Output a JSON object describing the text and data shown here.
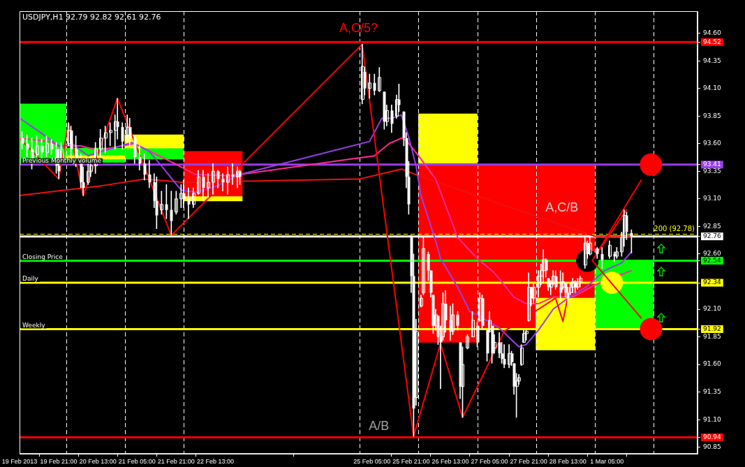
{
  "chart_data": {
    "type": "candlestick",
    "title": "USDJPY,H1 92.79 92.82 92.61 92.76",
    "color": "#ffffff",
    "x": [
      "2013-02-19T06:00",
      "2013-02-19T08:00",
      "2013-02-19T10:00",
      "2013-02-19T12:00",
      "2013-02-19T14:00",
      "2013-02-19T16:00",
      "2013-02-19T18:00",
      "2013-02-19T20:00",
      "2013-02-19T21:00",
      "2013-02-19T22:00",
      "2013-02-20T01:00",
      "2013-02-20T02:00",
      "2013-02-20T04:00",
      "2013-02-20T06:00",
      "2013-02-20T07:00",
      "2013-02-20T09:00",
      "2013-02-20T10:00",
      "2013-02-20T12:00",
      "2013-02-20T14:00",
      "2013-02-20T16:00",
      "2013-02-20T18:00",
      "2013-02-20T20:00",
      "2013-02-20T21:00",
      "2013-02-20T23:00",
      "2013-02-21T01:00",
      "2013-02-21T02:00",
      "2013-02-21T04:00",
      "2013-02-21T06:00",
      "2013-02-21T08:00",
      "2013-02-21T10:00",
      "2013-02-21T12:00",
      "2013-02-21T13:00",
      "2013-02-21T15:00",
      "2013-02-21T17:00",
      "2013-02-21T19:00",
      "2013-02-21T21:00",
      "2013-02-21T23:00",
      "2013-02-22T00:00",
      "2013-02-22T02:00",
      "2013-02-22T04:00",
      "2013-02-22T06:00",
      "2013-02-22T08:00",
      "2013-02-22T10:00",
      "2013-02-22T12:00",
      "2013-02-22T14:00",
      "2013-02-22T16:00",
      "2013-02-22T18:00",
      "2013-02-22T20:00",
      "2013-02-22T22:00",
      "2013-02-22T23:00",
      "2013-02-25T01:00",
      "2013-02-25T02:00",
      "2013-02-25T04:00",
      "2013-02-25T06:00",
      "2013-02-25T08:00",
      "2013-02-25T10:00",
      "2013-02-25T11:00",
      "2013-02-25T13:00",
      "2013-02-25T15:00",
      "2013-02-25T16:00",
      "2013-02-25T18:00",
      "2013-02-25T19:00",
      "2013-02-25T20:00",
      "2013-02-25T21:00",
      "2013-02-25T22:00",
      "2013-02-25T23:00",
      "2013-02-26T01:00",
      "2013-02-26T02:00",
      "2013-02-26T04:00",
      "2013-02-26T05:00",
      "2013-02-26T06:00",
      "2013-02-26T07:00",
      "2013-02-26T08:00",
      "2013-02-26T09:00",
      "2013-02-26T10:00",
      "2013-02-26T11:00",
      "2013-02-26T13:00",
      "2013-02-26T14:00",
      "2013-02-26T16:00",
      "2013-02-26T17:00",
      "2013-02-26T18:00",
      "2013-02-26T20:00",
      "2013-02-26T22:00",
      "2013-02-27T00:00",
      "2013-02-27T01:00",
      "2013-02-27T02:00",
      "2013-02-27T04:00",
      "2013-02-27T05:00",
      "2013-02-27T06:00",
      "2013-02-27T07:00",
      "2013-02-27T09:00",
      "2013-02-27T10:00",
      "2013-02-27T11:00",
      "2013-02-27T13:00",
      "2013-02-27T14:00",
      "2013-02-27T15:00",
      "2013-02-27T16:00",
      "2013-02-27T17:00",
      "2013-02-27T18:00",
      "2013-02-27T19:00",
      "2013-02-27T20:00",
      "2013-02-27T21:00",
      "2013-02-27T22:00",
      "2013-02-27T23:00",
      "2013-02-28T01:00",
      "2013-02-28T02:00",
      "2013-02-28T03:00",
      "2013-02-28T04:00",
      "2013-02-28T05:00",
      "2013-02-28T06:00",
      "2013-02-28T07:00",
      "2013-02-28T08:00",
      "2013-02-28T10:00",
      "2013-02-28T11:00",
      "2013-02-28T12:00",
      "2013-02-28T13:00",
      "2013-02-28T14:00",
      "2013-02-28T15:00",
      "2013-02-28T16:00",
      "2013-02-28T17:00",
      "2013-02-28T18:00",
      "2013-02-28T20:00",
      "2013-02-28T21:00",
      "2013-02-28T22:00",
      "2013-03-01T01:00",
      "2013-03-01T03:00",
      "2013-03-01T06:00",
      "2013-03-01T08:00",
      "2013-03-01T09:00",
      "2013-03-01T11:00",
      "2013-03-01T12:00",
      "2013-03-01T13:00",
      "2013-03-01T15:00"
    ],
    "ohlc": [
      [
        93.65,
        93.71,
        93.55,
        93.6
      ],
      [
        93.6,
        93.68,
        93.48,
        93.55
      ],
      [
        93.55,
        93.65,
        93.37,
        93.45
      ],
      [
        93.5,
        93.67,
        93.48,
        93.58
      ],
      [
        93.58,
        93.65,
        93.46,
        93.52
      ],
      [
        93.52,
        93.67,
        93.48,
        93.6
      ],
      [
        93.6,
        93.64,
        93.5,
        93.55
      ],
      [
        93.55,
        93.61,
        93.33,
        93.4
      ],
      [
        93.4,
        93.55,
        93.28,
        93.35
      ],
      [
        93.45,
        93.61,
        93.44,
        93.55
      ],
      [
        93.6,
        93.79,
        93.58,
        93.72
      ],
      [
        93.72,
        93.76,
        93.48,
        93.55
      ],
      [
        93.55,
        93.67,
        93.39,
        93.45
      ],
      [
        93.45,
        93.51,
        93.2,
        93.25
      ],
      [
        93.25,
        93.39,
        93.13,
        93.2
      ],
      [
        93.25,
        93.42,
        93.23,
        93.35
      ],
      [
        93.35,
        93.48,
        93.3,
        93.4
      ],
      [
        93.4,
        93.61,
        93.33,
        93.55
      ],
      [
        93.55,
        93.73,
        93.48,
        93.65
      ],
      [
        93.65,
        93.76,
        93.51,
        93.7
      ],
      [
        93.7,
        93.79,
        93.58,
        93.72
      ],
      [
        93.72,
        93.86,
        93.55,
        93.8
      ],
      [
        93.8,
        94.01,
        93.64,
        93.75
      ],
      [
        93.75,
        93.79,
        93.55,
        93.62
      ],
      [
        93.62,
        93.86,
        93.61,
        93.75
      ],
      [
        93.75,
        93.83,
        93.58,
        93.65
      ],
      [
        93.65,
        93.67,
        93.42,
        93.48
      ],
      [
        93.48,
        93.58,
        93.36,
        93.42
      ],
      [
        93.42,
        93.51,
        93.27,
        93.32
      ],
      [
        93.32,
        93.45,
        93.2,
        93.25
      ],
      [
        93.25,
        93.33,
        93.02,
        93.08
      ],
      [
        93.08,
        93.3,
        92.83,
        92.95
      ],
      [
        93.0,
        93.17,
        92.96,
        93.05
      ],
      [
        93.05,
        93.23,
        92.92,
        93.0
      ],
      [
        93.0,
        93.17,
        92.77,
        92.9
      ],
      [
        92.98,
        93.17,
        92.96,
        93.1
      ],
      [
        93.1,
        93.23,
        93.02,
        93.15
      ],
      [
        93.15,
        93.27,
        93.02,
        93.1
      ],
      [
        93.1,
        93.2,
        92.92,
        93.05
      ],
      [
        93.05,
        93.2,
        93.02,
        93.15
      ],
      [
        93.15,
        93.36,
        93.14,
        93.3
      ],
      [
        93.3,
        93.36,
        93.08,
        93.2
      ],
      [
        93.2,
        93.33,
        93.11,
        93.25
      ],
      [
        93.25,
        93.42,
        93.14,
        93.35
      ],
      [
        93.35,
        93.36,
        93.2,
        93.28
      ],
      [
        93.28,
        93.33,
        93.17,
        93.25
      ],
      [
        93.25,
        93.39,
        93.14,
        93.32
      ],
      [
        93.32,
        93.42,
        93.23,
        93.3
      ],
      [
        93.3,
        93.39,
        93.2,
        93.35
      ],
      [
        93.35,
        93.36,
        93.23,
        93.3
      ],
      [
        94.0,
        94.5,
        93.96,
        94.3
      ],
      [
        94.25,
        94.29,
        94.04,
        94.1
      ],
      [
        94.1,
        94.23,
        94.01,
        94.15
      ],
      [
        94.15,
        94.23,
        94.04,
        94.08
      ],
      [
        94.08,
        94.29,
        94.07,
        94.2
      ],
      [
        94.07,
        94.07,
        93.73,
        93.8
      ],
      [
        93.8,
        93.95,
        93.76,
        93.9
      ],
      [
        93.9,
        93.95,
        93.7,
        93.78
      ],
      [
        93.85,
        94.04,
        93.83,
        94.0
      ],
      [
        94.0,
        94.14,
        93.89,
        93.95
      ],
      [
        93.89,
        93.89,
        93.58,
        93.65
      ],
      [
        93.65,
        93.7,
        93.2,
        93.3
      ],
      [
        93.3,
        93.44,
        92.96,
        93.05
      ],
      [
        92.75,
        92.77,
        92.25,
        92.4
      ],
      [
        92.4,
        92.6,
        90.95,
        91.2
      ],
      [
        91.3,
        92.01,
        91.23,
        91.9
      ],
      [
        92.13,
        92.23,
        92.12,
        92.2
      ],
      [
        92.25,
        92.75,
        92.23,
        92.65
      ],
      [
        92.6,
        92.62,
        92.36,
        92.45
      ],
      [
        92.45,
        92.45,
        92.21,
        92.25
      ],
      [
        92.23,
        92.23,
        91.88,
        91.95
      ],
      [
        91.95,
        92.1,
        91.91,
        92.05
      ],
      [
        92.04,
        92.04,
        91.78,
        91.85
      ],
      [
        91.85,
        91.95,
        91.38,
        91.8
      ],
      [
        91.85,
        92.25,
        91.82,
        92.15
      ],
      [
        92.15,
        92.27,
        91.89,
        92.0
      ],
      [
        92.0,
        92.13,
        91.82,
        91.9
      ],
      [
        91.9,
        92.15,
        91.87,
        92.05
      ],
      [
        92.05,
        92.08,
        91.91,
        91.95
      ],
      [
        91.8,
        91.8,
        91.29,
        91.4
      ],
      [
        91.4,
        91.76,
        91.12,
        91.6
      ],
      [
        91.75,
        91.87,
        91.74,
        91.85
      ],
      [
        91.85,
        92.08,
        91.85,
        92.0
      ],
      [
        91.95,
        91.98,
        91.76,
        91.8
      ],
      [
        92.0,
        92.25,
        91.99,
        92.2
      ],
      [
        92.2,
        92.23,
        91.92,
        91.95
      ],
      [
        91.91,
        91.91,
        91.63,
        91.7
      ],
      [
        91.9,
        92.08,
        91.89,
        92.0
      ],
      [
        91.95,
        91.95,
        91.61,
        91.7
      ],
      [
        91.75,
        91.87,
        91.7,
        91.8
      ],
      [
        91.8,
        91.89,
        91.66,
        91.7
      ],
      [
        91.7,
        91.8,
        91.61,
        91.65
      ],
      [
        91.65,
        91.78,
        91.57,
        91.6
      ],
      [
        91.6,
        91.78,
        91.57,
        91.7
      ],
      [
        91.7,
        91.72,
        91.59,
        91.62
      ],
      [
        91.61,
        91.61,
        91.33,
        91.4
      ],
      [
        91.4,
        91.52,
        91.12,
        91.45
      ],
      [
        91.45,
        91.51,
        91.42,
        91.48
      ],
      [
        91.6,
        91.78,
        91.59,
        91.75
      ],
      [
        91.8,
        91.91,
        91.8,
        91.88
      ],
      [
        91.88,
        91.91,
        91.82,
        91.9
      ],
      [
        92.0,
        92.43,
        91.99,
        92.3
      ],
      [
        92.3,
        92.3,
        92.13,
        92.2
      ],
      [
        92.2,
        92.34,
        92.15,
        92.3
      ],
      [
        92.3,
        92.45,
        92.21,
        92.4
      ],
      [
        92.4,
        92.51,
        92.32,
        92.45
      ],
      [
        92.45,
        92.64,
        92.34,
        92.55
      ],
      [
        92.55,
        92.56,
        92.39,
        92.45
      ],
      [
        92.38,
        92.38,
        92.27,
        92.3
      ],
      [
        92.3,
        92.36,
        92.23,
        92.33
      ],
      [
        92.33,
        92.45,
        92.32,
        92.4
      ],
      [
        92.4,
        92.45,
        92.28,
        92.3
      ],
      [
        92.3,
        92.45,
        92.17,
        92.25
      ],
      [
        92.3,
        92.43,
        92.28,
        92.35
      ],
      [
        92.34,
        92.34,
        92.21,
        92.25
      ],
      [
        92.25,
        92.3,
        92.13,
        92.2
      ],
      [
        92.25,
        92.34,
        92.23,
        92.3
      ],
      [
        92.3,
        92.38,
        92.25,
        92.35
      ],
      [
        92.35,
        92.36,
        92.25,
        92.3
      ],
      [
        92.3,
        92.38,
        92.28,
        92.35
      ],
      [
        92.35,
        92.4,
        92.3,
        92.38
      ],
      [
        92.5,
        92.75,
        92.47,
        92.7
      ],
      [
        92.7,
        92.72,
        92.56,
        92.6
      ],
      [
        92.6,
        92.75,
        92.59,
        92.7
      ],
      [
        92.65,
        92.66,
        92.56,
        92.6
      ],
      [
        92.6,
        92.66,
        92.47,
        92.55
      ],
      [
        92.58,
        92.72,
        92.56,
        92.68
      ],
      [
        92.6,
        92.62,
        92.53,
        92.58
      ],
      [
        92.58,
        92.66,
        92.56,
        92.62
      ],
      [
        92.62,
        92.8,
        92.58,
        92.75
      ],
      [
        92.75,
        93.0,
        92.67,
        92.95
      ],
      [
        92.95,
        92.98,
        92.73,
        92.8
      ],
      [
        92.79,
        92.82,
        92.61,
        92.76
      ]
    ],
    "series": [
      {
        "type": "bar",
        "color": "#ff0000",
        "x": [
          "2013-02-22T12:00",
          "2013-02-26T12:00",
          "2013-02-27T12:00",
          "2013-02-28T12:00"
        ],
        "base": [
          93.12,
          91.8,
          91.92,
          92.2
        ],
        "values": [
          0.41,
          1.61,
          1.49,
          1.21
        ]
      },
      {
        "type": "bar",
        "color": "#00ff00",
        "x": [
          "2013-02-19T12:00",
          "2013-02-20T12:00",
          "2013-02-21T12:00",
          "2013-03-01T12:00"
        ],
        "base": [
          93.41,
          93.43,
          93.46,
          91.93
        ],
        "values": [
          0.55,
          0.13,
          0.1,
          0.61
        ]
      },
      {
        "type": "bar",
        "color": "#ffff00",
        "x": [
          "2013-02-20T12:00",
          "2013-02-21T12:00",
          "2013-02-22T12:00",
          "2013-02-26T12:00",
          "2013-02-28T12:00"
        ],
        "base": [
          93.46,
          93.56,
          93.08,
          93.42,
          91.73
        ],
        "values": [
          0.03,
          0.12,
          0.04,
          0.45,
          0.47
        ]
      },
      {
        "type": "line",
        "color": "#ee1111",
        "x": [
          "2013-02-19T05:00",
          "2013-02-20T15:00",
          "2013-02-21T08:00",
          "2013-02-22T00:00",
          "2013-02-25T00:00",
          "2013-02-25T17:00",
          "2013-02-26T00:00",
          "2013-03-01T00:00",
          "2013-03-01T15:00"
        ],
        "values": [
          93.13,
          93.22,
          93.28,
          93.25,
          93.28,
          93.37,
          93.31,
          92.76,
          92.76
        ]
      },
      {
        "type": "line",
        "color": "#ff2a9a",
        "x": [
          "2013-02-19T05:00",
          "2013-02-19T17:00",
          "2013-02-19T21:00",
          "2013-02-20T06:00",
          "2013-02-20T13:00",
          "2013-02-20T23:00",
          "2013-02-21T04:00",
          "2013-02-21T15:00",
          "2013-02-22T05:00",
          "2013-02-22T18:00",
          "2013-02-22T23:00",
          "2013-02-25T06:00",
          "2013-02-25T12:00",
          "2013-02-25T17:00",
          "2013-02-25T19:00",
          "2013-02-26T00:00",
          "2013-02-26T07:00",
          "2013-02-26T16:00",
          "2013-02-27T00:00",
          "2013-02-27T07:00",
          "2013-02-27T15:00",
          "2013-02-27T20:00",
          "2013-02-28T01:00",
          "2013-02-28T07:00",
          "2013-02-28T15:00",
          "2013-03-01T00:00",
          "2013-03-01T15:00"
        ],
        "values": [
          93.65,
          93.62,
          93.58,
          93.58,
          93.54,
          93.58,
          93.6,
          93.48,
          93.32,
          93.31,
          93.32,
          93.49,
          93.6,
          93.65,
          93.63,
          93.49,
          93.28,
          92.75,
          92.56,
          92.43,
          92.21,
          92.15,
          92.15,
          92.21,
          92.21,
          92.32,
          92.45
        ]
      },
      {
        "type": "line",
        "color": "#9a3ee8",
        "x": [
          "2013-02-19T05:00",
          "2013-02-19T13:00",
          "2013-02-19T21:00",
          "2013-02-20T03:00",
          "2013-02-20T09:00",
          "2013-02-20T19:00",
          "2013-02-21T03:00",
          "2013-02-21T10:00",
          "2013-02-21T16:00",
          "2013-02-21T23:00",
          "2013-02-22T05:00",
          "2013-02-22T14:00",
          "2013-02-22T23:00",
          "2013-02-25T04:00",
          "2013-02-25T09:00",
          "2013-02-25T13:00",
          "2013-02-25T17:00",
          "2013-02-25T20:00",
          "2013-02-25T23:00",
          "2013-02-26T01:00",
          "2013-02-26T07:00",
          "2013-02-26T09:00",
          "2013-02-26T16:00",
          "2013-02-26T21:00",
          "2013-02-27T00:00",
          "2013-02-27T09:00",
          "2013-02-27T17:00",
          "2013-02-27T20:00",
          "2013-02-28T01:00",
          "2013-02-28T07:00",
          "2013-02-28T13:00",
          "2013-02-28T21:00",
          "2013-03-01T04:00",
          "2013-03-01T11:00",
          "2013-03-01T15:00"
        ],
        "values": [
          93.83,
          93.71,
          93.58,
          93.59,
          93.49,
          93.56,
          93.61,
          93.53,
          93.37,
          93.18,
          93.16,
          93.22,
          93.32,
          93.62,
          93.83,
          93.83,
          93.86,
          93.66,
          93.4,
          93.13,
          92.72,
          92.56,
          92.3,
          92.08,
          92.05,
          91.93,
          91.76,
          91.78,
          91.91,
          92.1,
          92.2,
          92.31,
          92.45,
          92.52,
          92.62
        ]
      },
      {
        "type": "line",
        "color": "#ff0000",
        "x": [
          "2013-02-19T05:00",
          "2013-02-19T21:00",
          "2013-02-20T01:00",
          "2013-02-20T07:00",
          "2013-02-20T21:00",
          "2013-02-21T19:00",
          "2013-02-25T01:00",
          "2013-02-25T22:00",
          "2013-02-26T09:00",
          "2013-02-26T18:00",
          "2013-02-27T11:00",
          "2013-02-28T08:00",
          "2013-02-28T11:00",
          "2013-02-28T13:00",
          "2013-03-01T13:00"
        ],
        "values": [
          93.65,
          93.28,
          93.79,
          93.13,
          94.01,
          92.77,
          94.5,
          90.95,
          91.79,
          91.12,
          91.9,
          92.2,
          91.99,
          92.21,
          93.0
        ]
      },
      {
        "type": "scatter",
        "marker": "circle",
        "color": "#ff0000",
        "x": [
          "2013-03-01T23:00",
          "2013-03-01T23:00"
        ],
        "values": [
          93.41,
          91.92
        ]
      },
      {
        "type": "scatter",
        "marker": "circle",
        "color": "#ffff00",
        "x": [
          "2013-03-01T07:00"
        ],
        "values": [
          92.34
        ]
      },
      {
        "type": "scatter",
        "marker": "circle",
        "color": "#000000",
        "x": [
          "2013-02-28T21:00"
        ],
        "values": [
          92.54
        ]
      },
      {
        "type": "line",
        "color": "#ff0000",
        "x": [
          "2013-03-01T19:00",
          "2013-02-28T23:00",
          "2013-03-01T19:00"
        ],
        "values": [
          93.27,
          92.54,
          92.02
        ]
      }
    ],
    "xlim": [
      "2013-02-19T05:00",
      "2013-03-02T18:00"
    ],
    "xticks": [
      {
        "value": "2013-02-19T05:00",
        "label": "19 Feb 2013"
      },
      {
        "value": "2013-02-19T21:00",
        "label": "19 Feb 21:00"
      },
      {
        "value": "2013-02-20T13:00",
        "label": "20 Feb 13:00"
      },
      {
        "value": "2013-02-21T05:00",
        "label": "21 Feb 05:00"
      },
      {
        "value": "2013-02-21T21:00",
        "label": "21 Feb 21:00"
      },
      {
        "value": "2013-02-22T13:00",
        "label": "22 Feb 13:00"
      },
      {
        "value": "2013-02-25T05:00",
        "label": "25 Feb 05:00"
      },
      {
        "value": "2013-02-25T21:00",
        "label": "25 Feb 21:00"
      },
      {
        "value": "2013-02-26T13:00",
        "label": "26 Feb 13:00"
      },
      {
        "value": "2013-02-27T05:00",
        "label": "27 Feb 05:00"
      },
      {
        "value": "2013-02-27T21:00",
        "label": "27 Feb 21:00"
      },
      {
        "value": "2013-02-28T13:00",
        "label": "28 Feb 13:00"
      },
      {
        "value": "2013-03-01T05:00",
        "label": "1 Mar 05:00"
      }
    ],
    "ylim": [
      90.79,
      94.8
    ],
    "yticks": [
      {
        "value": 94.52,
        "label": "94.52"
      },
      {
        "value": 93.41,
        "label": "93.41"
      },
      {
        "value": 92.76,
        "label": "92.76"
      },
      {
        "value": 92.54,
        "label": "92.54"
      },
      {
        "value": 92.34,
        "label": "92.34"
      },
      {
        "value": 91.92,
        "label": "91.92"
      },
      {
        "value": 90.94,
        "label": "90.94"
      },
      {
        "value": 90.85,
        "label": "90.85"
      },
      {
        "value": 91.1,
        "label": "91.10"
      },
      {
        "value": 91.35,
        "label": "91.35"
      },
      {
        "value": 91.6,
        "label": "91.60"
      },
      {
        "value": 91.85,
        "label": "91.85"
      },
      {
        "value": 92.1,
        "label": "92.10"
      },
      {
        "value": 92.6,
        "label": "92.60"
      },
      {
        "value": 92.85,
        "label": "92.85"
      },
      {
        "value": 93.1,
        "label": "93.10"
      },
      {
        "value": 93.35,
        "label": "93.35"
      },
      {
        "value": 93.6,
        "label": "93.60"
      },
      {
        "value": 93.85,
        "label": "93.85"
      },
      {
        "value": 94.1,
        "label": "94.10"
      },
      {
        "value": 94.35,
        "label": "94.35"
      },
      {
        "value": 94.6,
        "label": "94.60"
      }
    ],
    "ref_lines": [
      {
        "axis": "x",
        "value": "2013-02-20T00:00",
        "label": null,
        "color": "#ffffff",
        "line_style": "dashed"
      },
      {
        "axis": "x",
        "value": "2013-02-21T00:00",
        "label": null,
        "color": "#ffffff",
        "line_style": "dashed"
      },
      {
        "axis": "x",
        "value": "2013-02-22T00:00",
        "label": null,
        "color": "#ffffff",
        "line_style": "dashed"
      },
      {
        "axis": "x",
        "value": "2013-02-25T00:00",
        "label": null,
        "color": "#ffffff",
        "line_style": "dashed"
      },
      {
        "axis": "x",
        "value": "2013-02-26T00:00",
        "label": null,
        "color": "#ffffff",
        "line_style": "dashed"
      },
      {
        "axis": "x",
        "value": "2013-02-27T00:00",
        "label": null,
        "color": "#ffffff",
        "line_style": "dashed"
      },
      {
        "axis": "x",
        "value": "2013-02-28T00:00",
        "label": null,
        "color": "#ffffff",
        "line_style": "dashed"
      },
      {
        "axis": "x",
        "value": "2013-03-01T00:00",
        "label": null,
        "color": "#ffffff",
        "line_style": "dashed"
      },
      {
        "axis": "x",
        "value": "2013-03-02T00:00",
        "label": null,
        "color": "#ffffff",
        "line_style": "dashed"
      },
      {
        "axis": "y",
        "value": 94.52,
        "label": null,
        "color": "#ff0000",
        "line_style": "solid"
      },
      {
        "axis": "y",
        "value": 93.41,
        "label": "Previous Monthly volume",
        "color": "#9a3ee8",
        "line_style": "solid"
      },
      {
        "axis": "y",
        "value": 92.78,
        "label": "200 (92.78)",
        "color": "#ffff00",
        "line_style": "dashed"
      },
      {
        "axis": "y",
        "value": 92.76,
        "label": null,
        "color": "#ffffff",
        "line_style": "solid"
      },
      {
        "axis": "y",
        "value": 92.54,
        "label": "Closing Price",
        "color": "#00ff00",
        "line_style": "solid"
      },
      {
        "axis": "y",
        "value": 92.34,
        "label": "Daily",
        "color": "#ffff00",
        "line_style": "solid"
      },
      {
        "axis": "y",
        "value": 91.92,
        "label": "Weekly",
        "color": "#ffff00",
        "line_style": "solid"
      },
      {
        "axis": "y",
        "value": 90.94,
        "label": null,
        "color": "#ff0000",
        "line_style": "solid"
      }
    ],
    "annotations": [
      "A,C/5?",
      "A,C/B",
      "A/B"
    ]
  }
}
